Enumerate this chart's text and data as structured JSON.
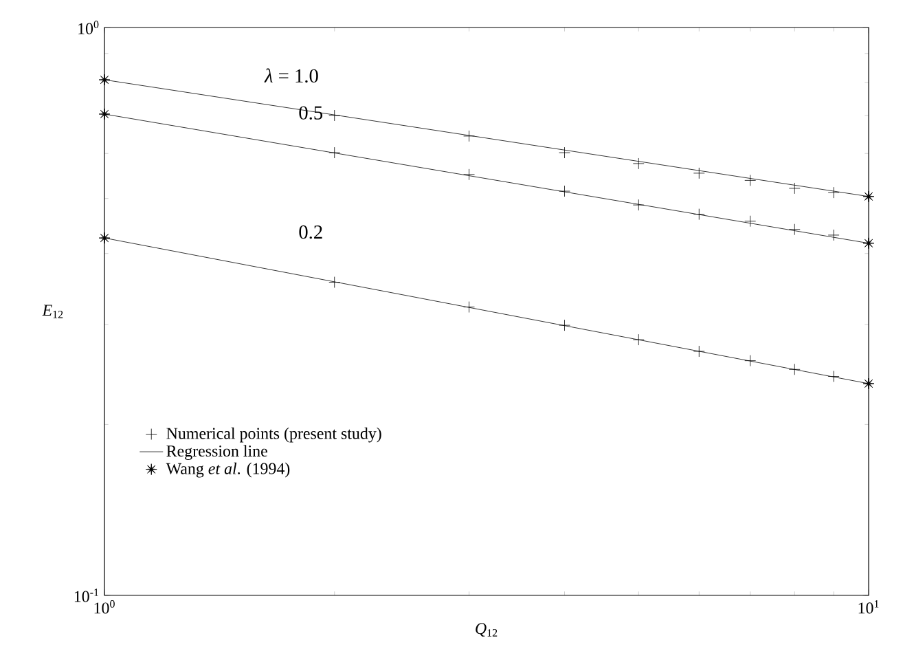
{
  "chart_data": {
    "type": "scatter",
    "xlabel": "*Q*$_{12}$",
    "ylabel": "*E*$_{12}$",
    "log": "xy",
    "xlim": [
      1,
      10
    ],
    "ylim": [
      0.1,
      1
    ],
    "xticks": [
      {
        "value": 1,
        "label": "10$^{0}$"
      },
      {
        "value": 10,
        "label": "10$^{1}$"
      }
    ],
    "yticks": [
      {
        "value": 0.1,
        "label": "10$^{-1}$"
      },
      {
        "value": 1,
        "label": "10$^{0}$"
      }
    ],
    "grid": false,
    "legend": "bottom left",
    "series": [
      {
        "name": "Numerical points (present study)",
        "marker": "cross",
        "color": "#000000",
        "x": [
          2,
          3,
          4,
          5,
          6,
          7,
          8,
          9
        ],
        "values": [
          0.7,
          0.644,
          0.602,
          0.576,
          0.554,
          0.538,
          0.521,
          0.512
        ]
      },
      {
        "name": "Regression line",
        "type": "line",
        "marker": "none",
        "color": "#000000",
        "x": [
          1,
          10
        ],
        "values": [
          0.809,
          0.504
        ]
      },
      {
        "name": "Wang *et al*. (1994)",
        "marker": "star",
        "color": "#000000",
        "x": [
          1,
          10
        ],
        "values": [
          0.809,
          0.504
        ]
      },
      {
        "marker": "cross",
        "color": "#000000",
        "x": [
          2,
          3,
          4,
          5,
          6,
          7,
          8,
          9
        ],
        "values": [
          0.602,
          0.551,
          0.515,
          0.487,
          0.469,
          0.456,
          0.441,
          0.431
        ]
      },
      {
        "type": "line",
        "marker": "none",
        "color": "#000000",
        "x": [
          1,
          10
        ],
        "values": [
          0.704,
          0.417
        ]
      },
      {
        "marker": "star",
        "color": "#000000",
        "x": [
          1,
          10
        ],
        "values": [
          0.704,
          0.417
        ]
      },
      {
        "marker": "cross",
        "color": "#000000",
        "x": [
          2,
          3,
          4,
          5,
          6,
          7,
          8,
          9
        ],
        "values": [
          0.356,
          0.322,
          0.299,
          0.282,
          0.269,
          0.259,
          0.25,
          0.243
        ]
      },
      {
        "type": "line",
        "marker": "none",
        "color": "#000000",
        "x": [
          1,
          10
        ],
        "values": [
          0.426,
          0.236
        ]
      },
      {
        "marker": "star",
        "color": "#000000",
        "x": [
          1,
          10
        ],
        "values": [
          0.426,
          0.236
        ]
      }
    ],
    "annotations": [
      "*λ* = 1.0",
      "0.5",
      "0.2"
    ]
  }
}
